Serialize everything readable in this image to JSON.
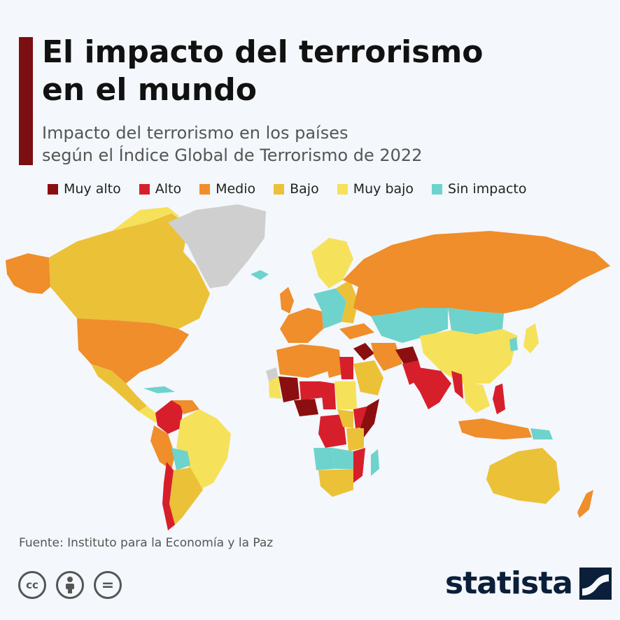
{
  "header": {
    "title_line1": "El impacto del terrorismo",
    "title_line2": "en el mundo",
    "subtitle_line1": "Impacto del terrorismo en los países",
    "subtitle_line2": "según el Índice Global de Terrorismo de 2022",
    "accent_color": "#7b0f12"
  },
  "legend": [
    {
      "label": "Muy alto",
      "color": "#8b0f10"
    },
    {
      "label": "Alto",
      "color": "#d71f2b"
    },
    {
      "label": "Medio",
      "color": "#ef8e2a"
    },
    {
      "label": "Bajo",
      "color": "#ebc137"
    },
    {
      "label": "Muy bajo",
      "color": "#f6e15a"
    },
    {
      "label": "Sin impacto",
      "color": "#6dd3cc"
    }
  ],
  "map": {
    "no_data_color": "#cfcfcf",
    "regions": [
      {
        "name": "Alaska",
        "level": "Medio"
      },
      {
        "name": "Canadá",
        "level": "Bajo"
      },
      {
        "name": "Groenlandia",
        "level": "Sin datos"
      },
      {
        "name": "Estados Unidos",
        "level": "Medio"
      },
      {
        "name": "México",
        "level": "Bajo"
      },
      {
        "name": "Colombia",
        "level": "Alto"
      },
      {
        "name": "Brasil",
        "level": "Muy bajo"
      },
      {
        "name": "Perú",
        "level": "Medio"
      },
      {
        "name": "Chile",
        "level": "Alto"
      },
      {
        "name": "Argentina",
        "level": "Bajo"
      },
      {
        "name": "Rusia",
        "level": "Medio"
      },
      {
        "name": "China",
        "level": "Muy bajo"
      },
      {
        "name": "Kazajistán",
        "level": "Sin impacto"
      },
      {
        "name": "Afganistán",
        "level": "Muy alto"
      },
      {
        "name": "Irak",
        "level": "Muy alto"
      },
      {
        "name": "India",
        "level": "Alto"
      },
      {
        "name": "Pakistán",
        "level": "Alto"
      },
      {
        "name": "Myanmar",
        "level": "Alto"
      },
      {
        "name": "Filipinas",
        "level": "Alto"
      },
      {
        "name": "Malí",
        "level": "Muy alto"
      },
      {
        "name": "Burkina Faso",
        "level": "Muy alto"
      },
      {
        "name": "Níger",
        "level": "Alto"
      },
      {
        "name": "Nigeria",
        "level": "Muy alto"
      },
      {
        "name": "Somalia",
        "level": "Muy alto"
      },
      {
        "name": "Egipto",
        "level": "Alto"
      },
      {
        "name": "Libia",
        "level": "Medio"
      },
      {
        "name": "Argelia",
        "level": "Medio"
      },
      {
        "name": "Sudán",
        "level": "Muy bajo"
      },
      {
        "name": "Rep. Dem. del Congo",
        "level": "Alto"
      },
      {
        "name": "Mozambique",
        "level": "Alto"
      },
      {
        "name": "Sudáfrica",
        "level": "Bajo"
      },
      {
        "name": "Madagascar",
        "level": "Sin impacto"
      },
      {
        "name": "Australia",
        "level": "Bajo"
      },
      {
        "name": "Nueva Zelanda",
        "level": "Medio"
      },
      {
        "name": "Indonesia",
        "level": "Medio"
      },
      {
        "name": "Europa occidental",
        "level": "Medio"
      },
      {
        "name": "Escandinavia",
        "level": "Muy bajo"
      },
      {
        "name": "Islandia",
        "level": "Sin impacto"
      }
    ]
  },
  "footer": {
    "source": "Fuente: Instituto para la Economía y la Paz",
    "cc_label": "cc",
    "nd_label": "=",
    "brand": "statista"
  }
}
